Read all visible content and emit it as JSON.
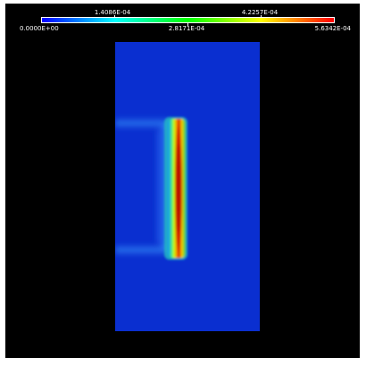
{
  "colorbar": {
    "min_label": "0.0000E+00",
    "q1_label": "1.4086E-04",
    "mid_label": "2.8171E-04",
    "q3_label": "4.2257E-04",
    "max_label": "5.6342E-04",
    "colormap": [
      "#0000ff",
      "#00ffff",
      "#00ff00",
      "#ffff00",
      "#ff0000"
    ]
  },
  "colors": {
    "background": "#000000",
    "field_base": "#0a2fd0",
    "peak": "#d01800"
  },
  "field": {
    "min_value": 0.0,
    "max_value": 0.00056342,
    "peak_value_approx": 0.00056342,
    "background_value_approx": 2e-05
  }
}
